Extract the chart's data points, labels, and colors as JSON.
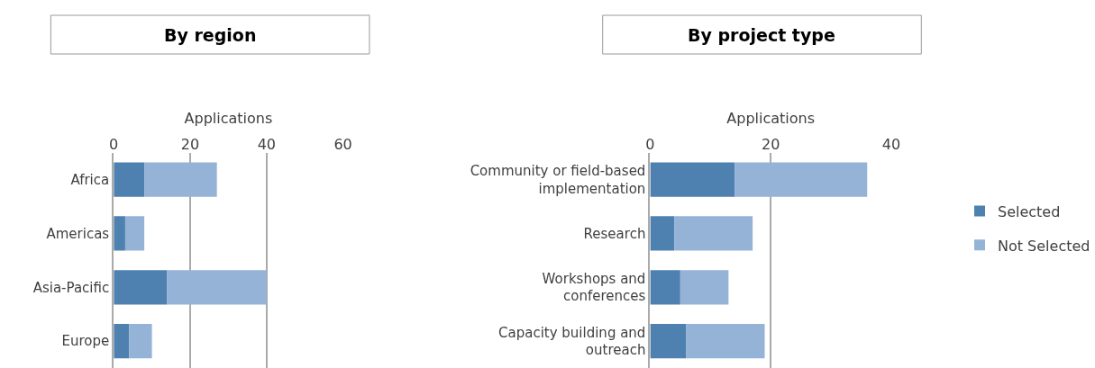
{
  "chart_data": [
    {
      "type": "bar",
      "title": "By region",
      "xlabel": "Applications",
      "orientation": "horizontal",
      "stacked": true,
      "categories": [
        "Africa",
        "Americas",
        "Asia-Pacific",
        "Europe"
      ],
      "series": [
        {
          "color": "#4e81b0",
          "values": [
            8,
            3,
            14,
            4
          ]
        },
        {
          "color": "#95b3d7",
          "values": [
            19,
            5,
            26,
            6
          ]
        }
      ],
      "xlim": [
        0,
        60
      ],
      "xticks": [
        0,
        20,
        40,
        60
      ],
      "grid": "x"
    },
    {
      "type": "bar",
      "title": "By project type",
      "xlabel": "Applications",
      "orientation": "horizontal",
      "stacked": true,
      "categories": [
        "Community or field-based implementation",
        "Research",
        "Workshops and conferences",
        "Capacity building and outreach"
      ],
      "series": [
        {
          "name": "Selected",
          "color": "#4e81b0",
          "values": [
            14,
            4,
            5,
            6
          ]
        },
        {
          "name": "Not Selected",
          "color": "#95b3d7",
          "values": [
            22,
            13,
            8,
            13
          ]
        }
      ],
      "xlim": [
        0,
        40
      ],
      "xticks": [
        0,
        20,
        40
      ],
      "grid": "x",
      "legend": "right"
    }
  ]
}
